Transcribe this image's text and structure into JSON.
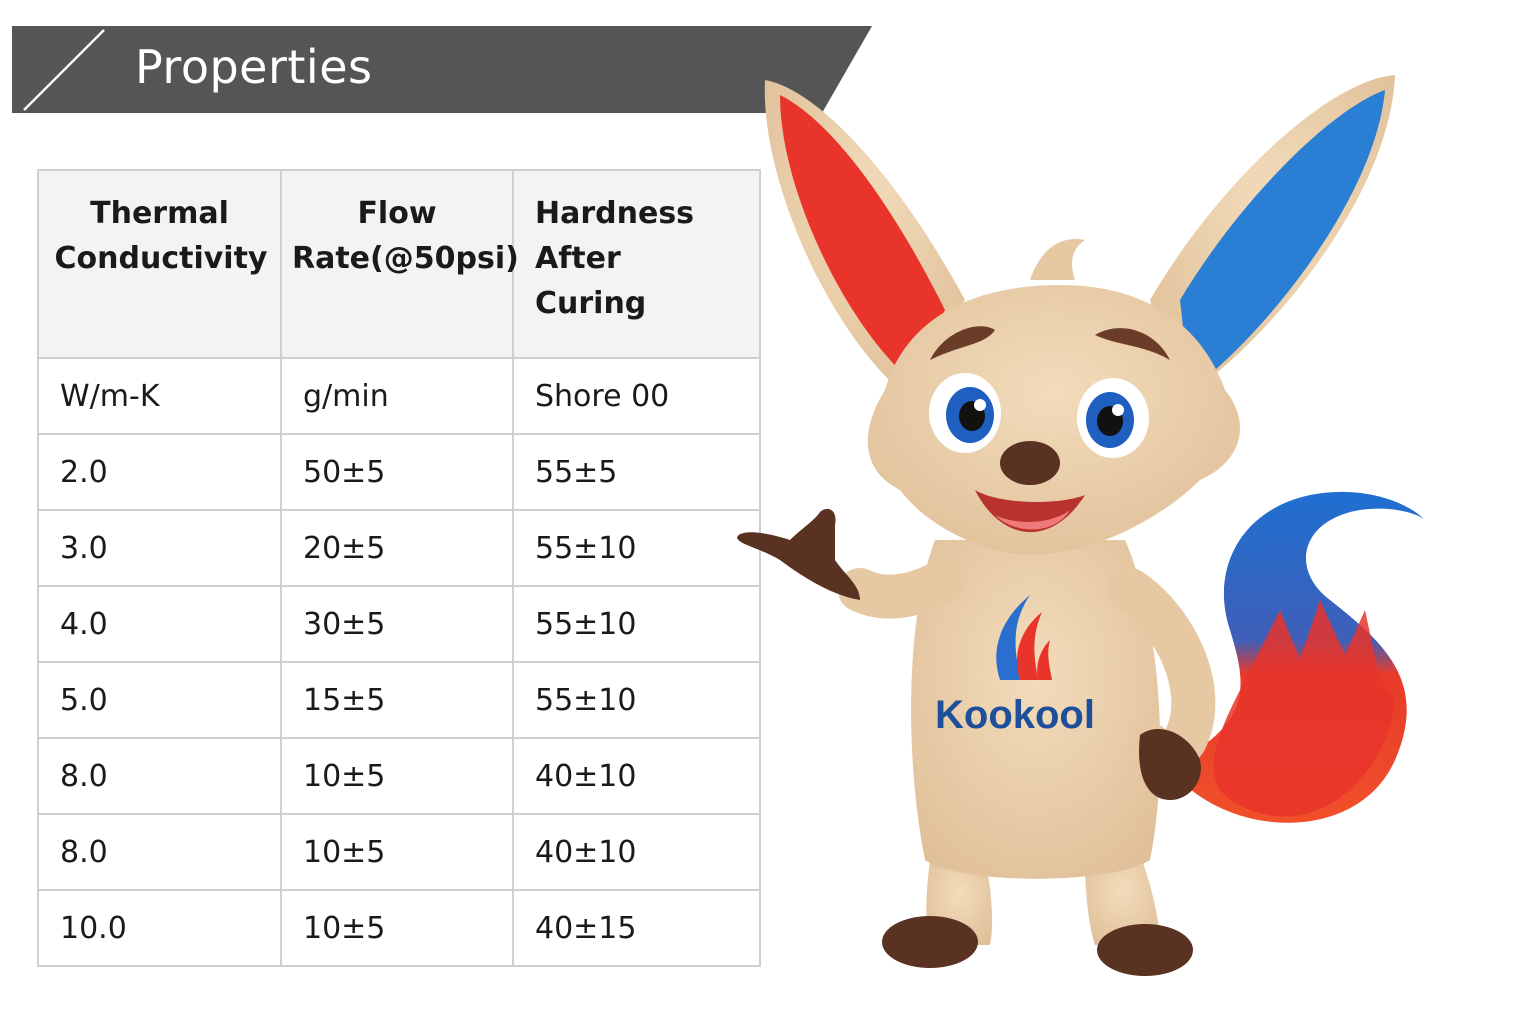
{
  "header": {
    "title": "Properties"
  },
  "table": {
    "headers": [
      "Thermal Conductivity",
      "Flow Rate(@50psi)",
      "Hardness After Curing"
    ],
    "units": [
      "W/m-K",
      "g/min",
      "Shore 00"
    ],
    "rows": [
      [
        "2.0",
        "50±5",
        "55±5"
      ],
      [
        "3.0",
        "20±5",
        "55±10"
      ],
      [
        "4.0",
        "30±5",
        "55±10"
      ],
      [
        "5.0",
        "15±5",
        "55±10"
      ],
      [
        "8.0",
        "10±5",
        "40±10"
      ],
      [
        "8.0",
        "10±5",
        "40±10"
      ],
      [
        "10.0",
        "10±5",
        "40±15"
      ]
    ]
  },
  "mascot": {
    "logo_text": "Kookool"
  },
  "colors": {
    "banner": "#555555",
    "fur": "#eccfa9",
    "red": "#e8342a",
    "blue": "#2a7fd4",
    "brown": "#5a3222",
    "logo_text": "#1d4f9a"
  }
}
